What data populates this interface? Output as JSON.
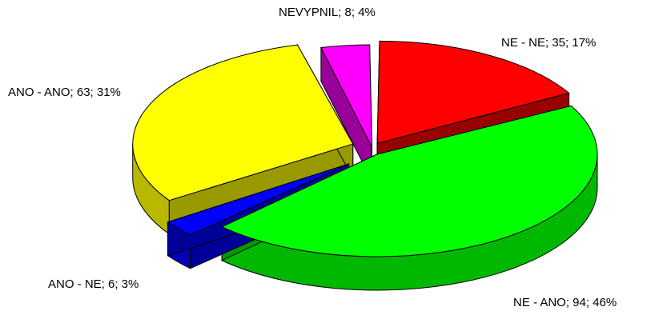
{
  "chart_data": {
    "type": "pie",
    "title": "",
    "three_d": true,
    "exploded": true,
    "slices": [
      {
        "label": "NE - NE",
        "value": 35,
        "percent": 17,
        "label_text": "NE - NE; 35; 17%",
        "color": "#ff0000"
      },
      {
        "label": "NE - ANO",
        "value": 94,
        "percent": 46,
        "label_text": "NE - ANO; 94; 46%",
        "color": "#00ff00"
      },
      {
        "label": "ANO - NE",
        "value": 6,
        "percent": 3,
        "label_text": "ANO - NE; 6; 3%",
        "color": "#0000ff"
      },
      {
        "label": "ANO - ANO",
        "value": 63,
        "percent": 31,
        "label_text": "ANO - ANO; 63; 31%",
        "color": "#ffff00"
      },
      {
        "label": "NEVYPNIL",
        "value": 8,
        "percent": 4,
        "label_text": "NEVYPNIL; 8; 4%",
        "color": "#ff00ff"
      }
    ]
  }
}
